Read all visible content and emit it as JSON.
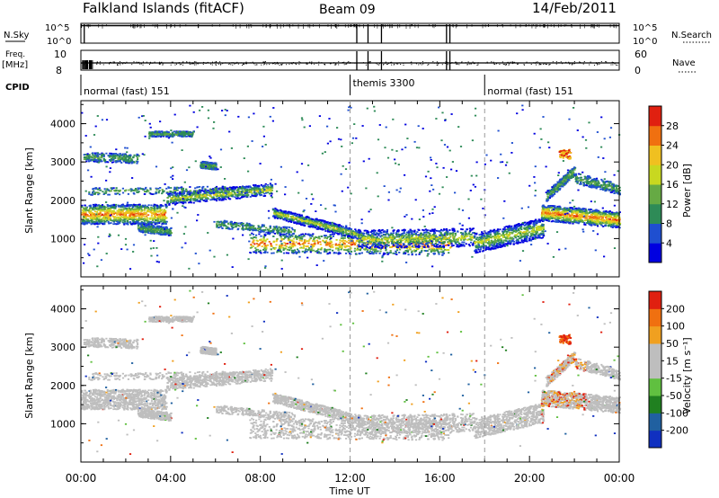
{
  "header": {
    "station": "Falkland Islands (fitACF)",
    "beam": "Beam 09",
    "date": "14/Feb/2011"
  },
  "strips": {
    "nsky_label": "N.Sky",
    "nsky_ticks": [
      "10^5",
      "10^0"
    ],
    "nsearch_label": "N.Search",
    "nsearch_ticks": [
      "10^5",
      "10^0"
    ],
    "freq_label": "Freq.",
    "freq_unit": "[MHz]",
    "freq_ticks": [
      "10",
      "8"
    ],
    "nave_label": "Nave",
    "nave_ticks": [
      "60",
      "0"
    ],
    "cpid_label": "CPID"
  },
  "cpid_modes": [
    {
      "label": "normal (fast) 151",
      "start_hour": 0
    },
    {
      "label": "themis 3300",
      "start_hour": 12
    },
    {
      "label": "normal (fast) 151",
      "start_hour": 18
    }
  ],
  "colors": {
    "power_scale": [
      "#0000e0",
      "#1f4fd0",
      "#2e8b57",
      "#66aa44",
      "#c8d820",
      "#f0c020",
      "#f07010",
      "#e02010"
    ],
    "velocity_scale": [
      "#1030c0",
      "#2060a0",
      "#208020",
      "#60c040",
      "#bebebe",
      "#bebebe",
      "#f0a020",
      "#f07010",
      "#e02010"
    ]
  },
  "chart_data": [
    {
      "type": "heatmap",
      "name": "power-panel",
      "ylabel": "Slant Range [km]",
      "xlabel": "",
      "xlim": [
        0,
        24
      ],
      "ylim": [
        0,
        4600
      ],
      "yticks": [
        "1000",
        "2000",
        "3000",
        "4000"
      ],
      "colorbar": {
        "label": "Power [dB]",
        "ticks": [
          "4",
          "8",
          "12",
          "16",
          "20",
          "24",
          "28"
        ],
        "range": [
          0,
          32
        ]
      }
    },
    {
      "type": "heatmap",
      "name": "velocity-panel",
      "ylabel": "Slant Range [km]",
      "xlabel": "Time UT",
      "xlim": [
        0,
        24
      ],
      "ylim": [
        0,
        4600
      ],
      "xticks": [
        "00:00",
        "04:00",
        "08:00",
        "12:00",
        "16:00",
        "20:00",
        "00:00"
      ],
      "yticks": [
        "1000",
        "2000",
        "3000",
        "4000"
      ],
      "colorbar": {
        "label": "Velocity [m s⁻¹]",
        "ticks": [
          "200",
          "100",
          "50",
          "15",
          "-15",
          "-50",
          "-100",
          "-200"
        ],
        "range": [
          -250,
          250
        ]
      }
    }
  ]
}
